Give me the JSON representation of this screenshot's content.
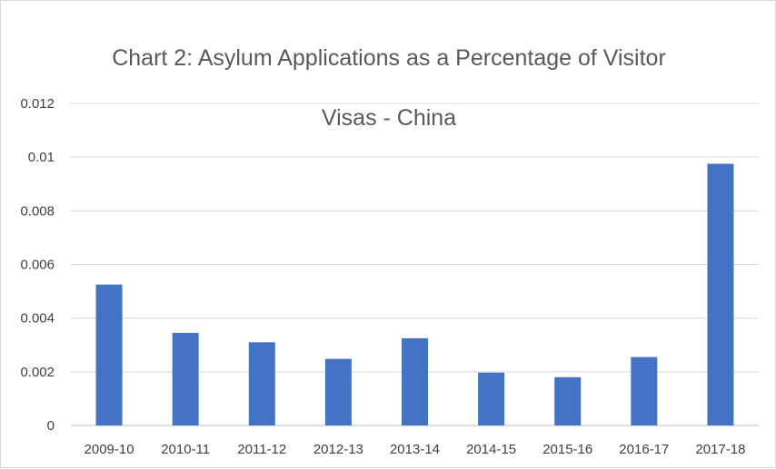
{
  "chart_data": {
    "type": "bar",
    "title_line1": "Chart 2: Asylum Applications as a Percentage of Visitor",
    "title_line2": "Visas - China",
    "xlabel": "",
    "ylabel": "",
    "categories": [
      "2009-10",
      "2010-11",
      "2011-12",
      "2012-13",
      "2013-14",
      "2014-15",
      "2015-16",
      "2016-17",
      "2017-18"
    ],
    "values": [
      0.00525,
      0.00345,
      0.0031,
      0.00248,
      0.00325,
      0.00197,
      0.0018,
      0.00255,
      0.00975
    ],
    "ylim": [
      0,
      0.012
    ],
    "yticks": [
      "0",
      "0.002",
      "0.004",
      "0.006",
      "0.008",
      "0.01",
      "0.012"
    ],
    "ytick_values": [
      0,
      0.002,
      0.004,
      0.006,
      0.008,
      0.01,
      0.012
    ],
    "grid": true,
    "legend": "none",
    "bar_color": "#4472c4",
    "grid_color": "#d9d9d9"
  }
}
